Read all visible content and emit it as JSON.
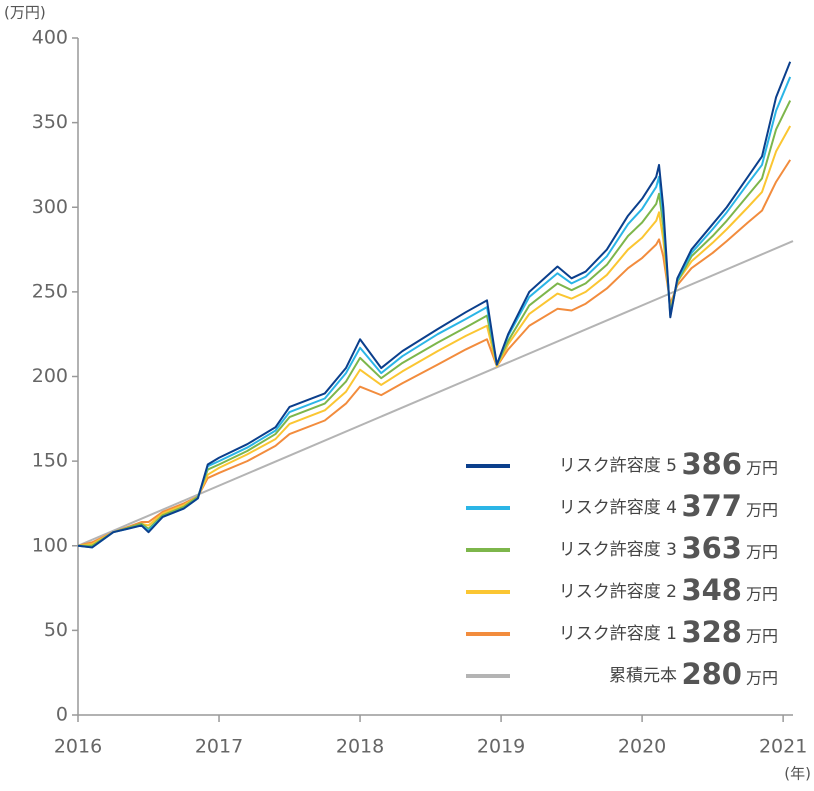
{
  "chart_data": {
    "type": "line",
    "y_unit_label": "(万円)",
    "x_unit_label": "(年)",
    "value_unit": "万円",
    "x": [
      2016.0,
      2016.1,
      2016.25,
      2016.45,
      2016.5,
      2016.6,
      2016.75,
      2016.85,
      2016.92,
      2017.0,
      2017.2,
      2017.4,
      2017.5,
      2017.75,
      2017.9,
      2018.0,
      2018.15,
      2018.3,
      2018.55,
      2018.75,
      2018.9,
      2018.97,
      2019.05,
      2019.2,
      2019.4,
      2019.5,
      2019.6,
      2019.75,
      2019.9,
      2020.0,
      2020.1,
      2020.12,
      2020.15,
      2020.2,
      2020.25,
      2020.35,
      2020.5,
      2020.6,
      2020.75,
      2020.85,
      2020.95,
      2021.05
    ],
    "series": [
      {
        "name": "リスク許容度 5",
        "color": "#0b3f8c",
        "end_value": 386,
        "values": [
          100,
          99,
          108,
          112,
          108,
          117,
          122,
          128,
          148,
          152,
          160,
          170,
          182,
          190,
          205,
          222,
          205,
          215,
          228,
          238,
          245,
          207,
          225,
          250,
          265,
          258,
          262,
          275,
          295,
          305,
          318,
          325,
          300,
          235,
          258,
          275,
          290,
          300,
          318,
          330,
          365,
          386
        ]
      },
      {
        "name": "リスク許容度 4",
        "color": "#2bb5e6",
        "end_value": 377,
        "values": [
          100,
          99,
          108,
          112,
          109,
          117,
          122,
          128,
          147,
          150,
          158,
          168,
          179,
          187,
          202,
          217,
          202,
          212,
          225,
          234,
          241,
          207,
          224,
          247,
          261,
          255,
          259,
          271,
          290,
          299,
          312,
          318,
          295,
          236,
          257,
          273,
          287,
          297,
          314,
          325,
          357,
          377
        ]
      },
      {
        "name": "リスク許容度 3",
        "color": "#7db64b",
        "end_value": 363,
        "values": [
          100,
          100,
          108,
          113,
          110,
          118,
          123,
          129,
          145,
          148,
          156,
          166,
          176,
          184,
          197,
          211,
          199,
          208,
          220,
          229,
          236,
          207,
          221,
          242,
          255,
          251,
          255,
          266,
          283,
          291,
          302,
          308,
          289,
          238,
          256,
          271,
          283,
          292,
          307,
          317,
          346,
          363
        ]
      },
      {
        "name": "リスク許容度 2",
        "color": "#fbc632",
        "end_value": 348,
        "values": [
          100,
          101,
          108,
          113,
          112,
          119,
          124,
          129,
          142,
          146,
          154,
          163,
          172,
          180,
          191,
          204,
          195,
          203,
          215,
          224,
          230,
          206,
          219,
          237,
          249,
          246,
          250,
          260,
          275,
          282,
          292,
          297,
          281,
          240,
          256,
          268,
          279,
          287,
          300,
          309,
          333,
          348
        ]
      },
      {
        "name": "リスク許容度 1",
        "color": "#f28c3d",
        "end_value": 328,
        "values": [
          100,
          102,
          108,
          114,
          114,
          120,
          125,
          129,
          140,
          143,
          150,
          159,
          166,
          174,
          184,
          194,
          189,
          196,
          207,
          216,
          222,
          206,
          216,
          230,
          240,
          239,
          243,
          252,
          264,
          270,
          278,
          281,
          271,
          243,
          254,
          264,
          273,
          280,
          291,
          298,
          315,
          328
        ]
      },
      {
        "name": "累積元本",
        "color": "#b4b4b4",
        "end_value": 280,
        "x": [
          2016.0,
          2021.07
        ],
        "values": [
          100,
          280
        ]
      }
    ],
    "xlim": [
      2016,
      2021.07
    ],
    "xticks": [
      2016,
      2017,
      2018,
      2019,
      2020,
      2021
    ],
    "ylim": [
      0,
      400
    ],
    "yticks": [
      0,
      50,
      100,
      150,
      200,
      250,
      300,
      350,
      400
    ],
    "grid": false
  }
}
